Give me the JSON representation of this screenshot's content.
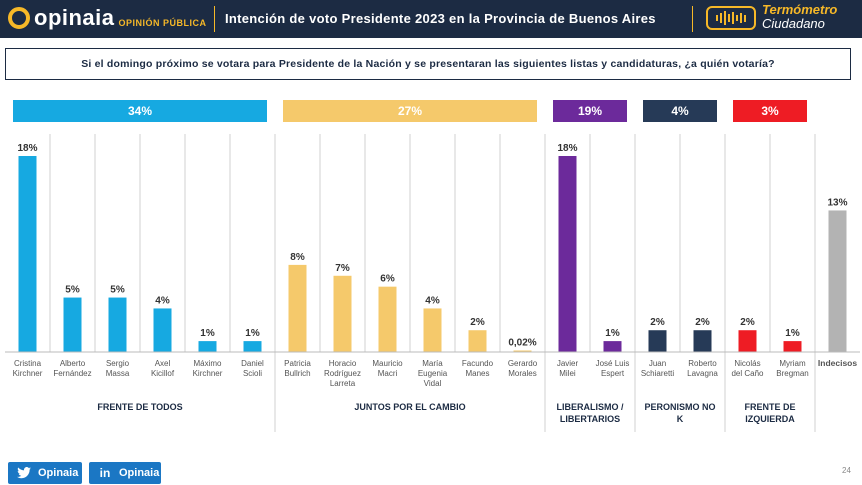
{
  "header": {
    "logo_text": "opinaia",
    "logo_sub": "OPINIÓN PÚBLICA",
    "title": "Intención de voto Presidente 2023 en la Provincia de Buenos Aires",
    "brand_line1": "Termómetro",
    "brand_line2": "Ciudadano"
  },
  "question": "Si el domingo próximo se votara para Presidente de la Nación y se presentaran las siguientes listas y candidaturas, ¿a quién votaría?",
  "footer": {
    "twitter_label": "Opinaia",
    "linkedin_label": "Opinaia",
    "page_number": "24"
  },
  "colors": {
    "frente_de_todos": "#16a9e1",
    "juntos_por_el_cambio": "#f5c96b",
    "liberalismo": "#6c2a9b",
    "peronismo_no_k": "#263a57",
    "frente_izquierda": "#ee1c24",
    "indecisos": "#b3b3b3",
    "header_bg": "#1c2b43",
    "accent": "#f6b828"
  },
  "chart_data": {
    "type": "bar",
    "y_unit": "%",
    "ylim": [
      0,
      18
    ],
    "groups": [
      {
        "name": "FRENTE DE TODOS",
        "total": "34%",
        "color": "#16a9e1",
        "candidates": [
          {
            "label": "Cristina Kirchner",
            "value": 18,
            "value_label": "18%"
          },
          {
            "label": "Alberto Fernández",
            "value": 5,
            "value_label": "5%"
          },
          {
            "label": "Sergio Massa",
            "value": 5,
            "value_label": "5%"
          },
          {
            "label": "Axel Kicillof",
            "value": 4,
            "value_label": "4%"
          },
          {
            "label": "Máximo Kirchner",
            "value": 1,
            "value_label": "1%"
          },
          {
            "label": "Daniel Scioli",
            "value": 1,
            "value_label": "1%"
          }
        ]
      },
      {
        "name": "JUNTOS POR EL CAMBIO",
        "total": "27%",
        "color": "#f5c96b",
        "candidates": [
          {
            "label": "Patricia Bullrich",
            "value": 8,
            "value_label": "8%"
          },
          {
            "label": "Horacio Rodríguez Larreta",
            "value": 7,
            "value_label": "7%"
          },
          {
            "label": "Mauricio Macri",
            "value": 6,
            "value_label": "6%"
          },
          {
            "label": "María Eugenia Vidal",
            "value": 4,
            "value_label": "4%"
          },
          {
            "label": "Facundo Manes",
            "value": 2,
            "value_label": "2%"
          },
          {
            "label": "Gerardo Morales",
            "value": 0.02,
            "value_label": "0,02%"
          }
        ]
      },
      {
        "name": "LIBERALISMO / LIBERTARIOS",
        "total": "19%",
        "color": "#6c2a9b",
        "candidates": [
          {
            "label": "Javier Milei",
            "value": 18,
            "value_label": "18%"
          },
          {
            "label": "José Luis Espert",
            "value": 1,
            "value_label": "1%"
          }
        ]
      },
      {
        "name": "PERONISMO NO K",
        "total": "4%",
        "color": "#263a57",
        "candidates": [
          {
            "label": "Juan Schiaretti",
            "value": 2,
            "value_label": "2%"
          },
          {
            "label": "Roberto Lavagna",
            "value": 2,
            "value_label": "2%"
          }
        ]
      },
      {
        "name": "FRENTE DE IZQUIERDA",
        "total": "3%",
        "color": "#ee1c24",
        "candidates": [
          {
            "label": "Nicolás del Caño",
            "value": 2,
            "value_label": "2%"
          },
          {
            "label": "Myriam Bregman",
            "value": 1,
            "value_label": "1%"
          }
        ]
      },
      {
        "name": "",
        "total": "",
        "color": "#b3b3b3",
        "candidates": [
          {
            "label": "Indecisos",
            "value": 13,
            "value_label": "13%"
          }
        ]
      }
    ]
  }
}
